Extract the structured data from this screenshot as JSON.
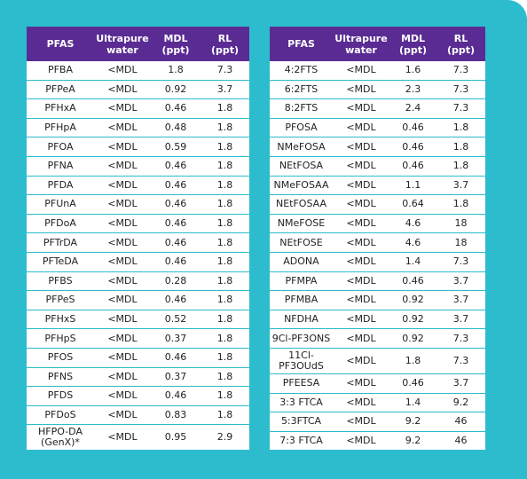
{
  "headers": [
    "PFAS",
    "Ultrapure\nwater",
    "MDL\n(ppt)",
    "RL\n(ppt)"
  ],
  "left_rows": [
    [
      "PFBA",
      "<MDL",
      "1.8",
      "7.3"
    ],
    [
      "PFPeA",
      "<MDL",
      "0.92",
      "3.7"
    ],
    [
      "PFHxA",
      "<MDL",
      "0.46",
      "1.8"
    ],
    [
      "PFHpA",
      "<MDL",
      "0.48",
      "1.8"
    ],
    [
      "PFOA",
      "<MDL",
      "0.59",
      "1.8"
    ],
    [
      "PFNA",
      "<MDL",
      "0.46",
      "1.8"
    ],
    [
      "PFDA",
      "<MDL",
      "0.46",
      "1.8"
    ],
    [
      "PFUnA",
      "<MDL",
      "0.46",
      "1.8"
    ],
    [
      "PFDoA",
      "<MDL",
      "0.46",
      "1.8"
    ],
    [
      "PFTrDA",
      "<MDL",
      "0.46",
      "1.8"
    ],
    [
      "PFTeDA",
      "<MDL",
      "0.46",
      "1.8"
    ],
    [
      "PFBS",
      "<MDL",
      "0.28",
      "1.8"
    ],
    [
      "PFPeS",
      "<MDL",
      "0.46",
      "1.8"
    ],
    [
      "PFHxS",
      "<MDL",
      "0.52",
      "1.8"
    ],
    [
      "PFHpS",
      "<MDL",
      "0.37",
      "1.8"
    ],
    [
      "PFOS",
      "<MDL",
      "0.46",
      "1.8"
    ],
    [
      "PFNS",
      "<MDL",
      "0.37",
      "1.8"
    ],
    [
      "PFDS",
      "<MDL",
      "0.46",
      "1.8"
    ],
    [
      "PFDoS",
      "<MDL",
      "0.83",
      "1.8"
    ],
    [
      "HFPO-DA\n(GenX)*",
      "<MDL",
      "0.95",
      "2.9"
    ]
  ],
  "right_rows": [
    [
      "4:2FTS",
      "<MDL",
      "1.6",
      "7.3"
    ],
    [
      "6:2FTS",
      "<MDL",
      "2.3",
      "7.3"
    ],
    [
      "8:2FTS",
      "<MDL",
      "2.4",
      "7.3"
    ],
    [
      "PFOSA",
      "<MDL",
      "0.46",
      "1.8"
    ],
    [
      "NMeFOSA",
      "<MDL",
      "0.46",
      "1.8"
    ],
    [
      "NEtFOSA",
      "<MDL",
      "0.46",
      "1.8"
    ],
    [
      "NMeFOSAA",
      "<MDL",
      "1.1",
      "3.7"
    ],
    [
      "NEtFOSAA",
      "<MDL",
      "0.64",
      "1.8"
    ],
    [
      "NMeFOSE",
      "<MDL",
      "4.6",
      "18"
    ],
    [
      "NEtFOSE",
      "<MDL",
      "4.6",
      "18"
    ],
    [
      "ADONA",
      "<MDL",
      "1.4",
      "7.3"
    ],
    [
      "PFMPA",
      "<MDL",
      "0.46",
      "3.7"
    ],
    [
      "PFMBA",
      "<MDL",
      "0.92",
      "3.7"
    ],
    [
      "NFDHA",
      "<MDL",
      "0.92",
      "3.7"
    ],
    [
      "9Cl-PF3ONS",
      "<MDL",
      "0.92",
      "7.3"
    ],
    [
      "11Cl-\nPF3OUdS",
      "<MDL",
      "1.8",
      "7.3"
    ],
    [
      "PFEESA",
      "<MDL",
      "0.46",
      "3.7"
    ],
    [
      "3:3 FTCA",
      "<MDL",
      "1.4",
      "9.2"
    ],
    [
      "5:3FTCA",
      "<MDL",
      "9.2",
      "46"
    ],
    [
      "7:3 FTCA",
      "<MDL",
      "9.2",
      "46"
    ]
  ]
}
